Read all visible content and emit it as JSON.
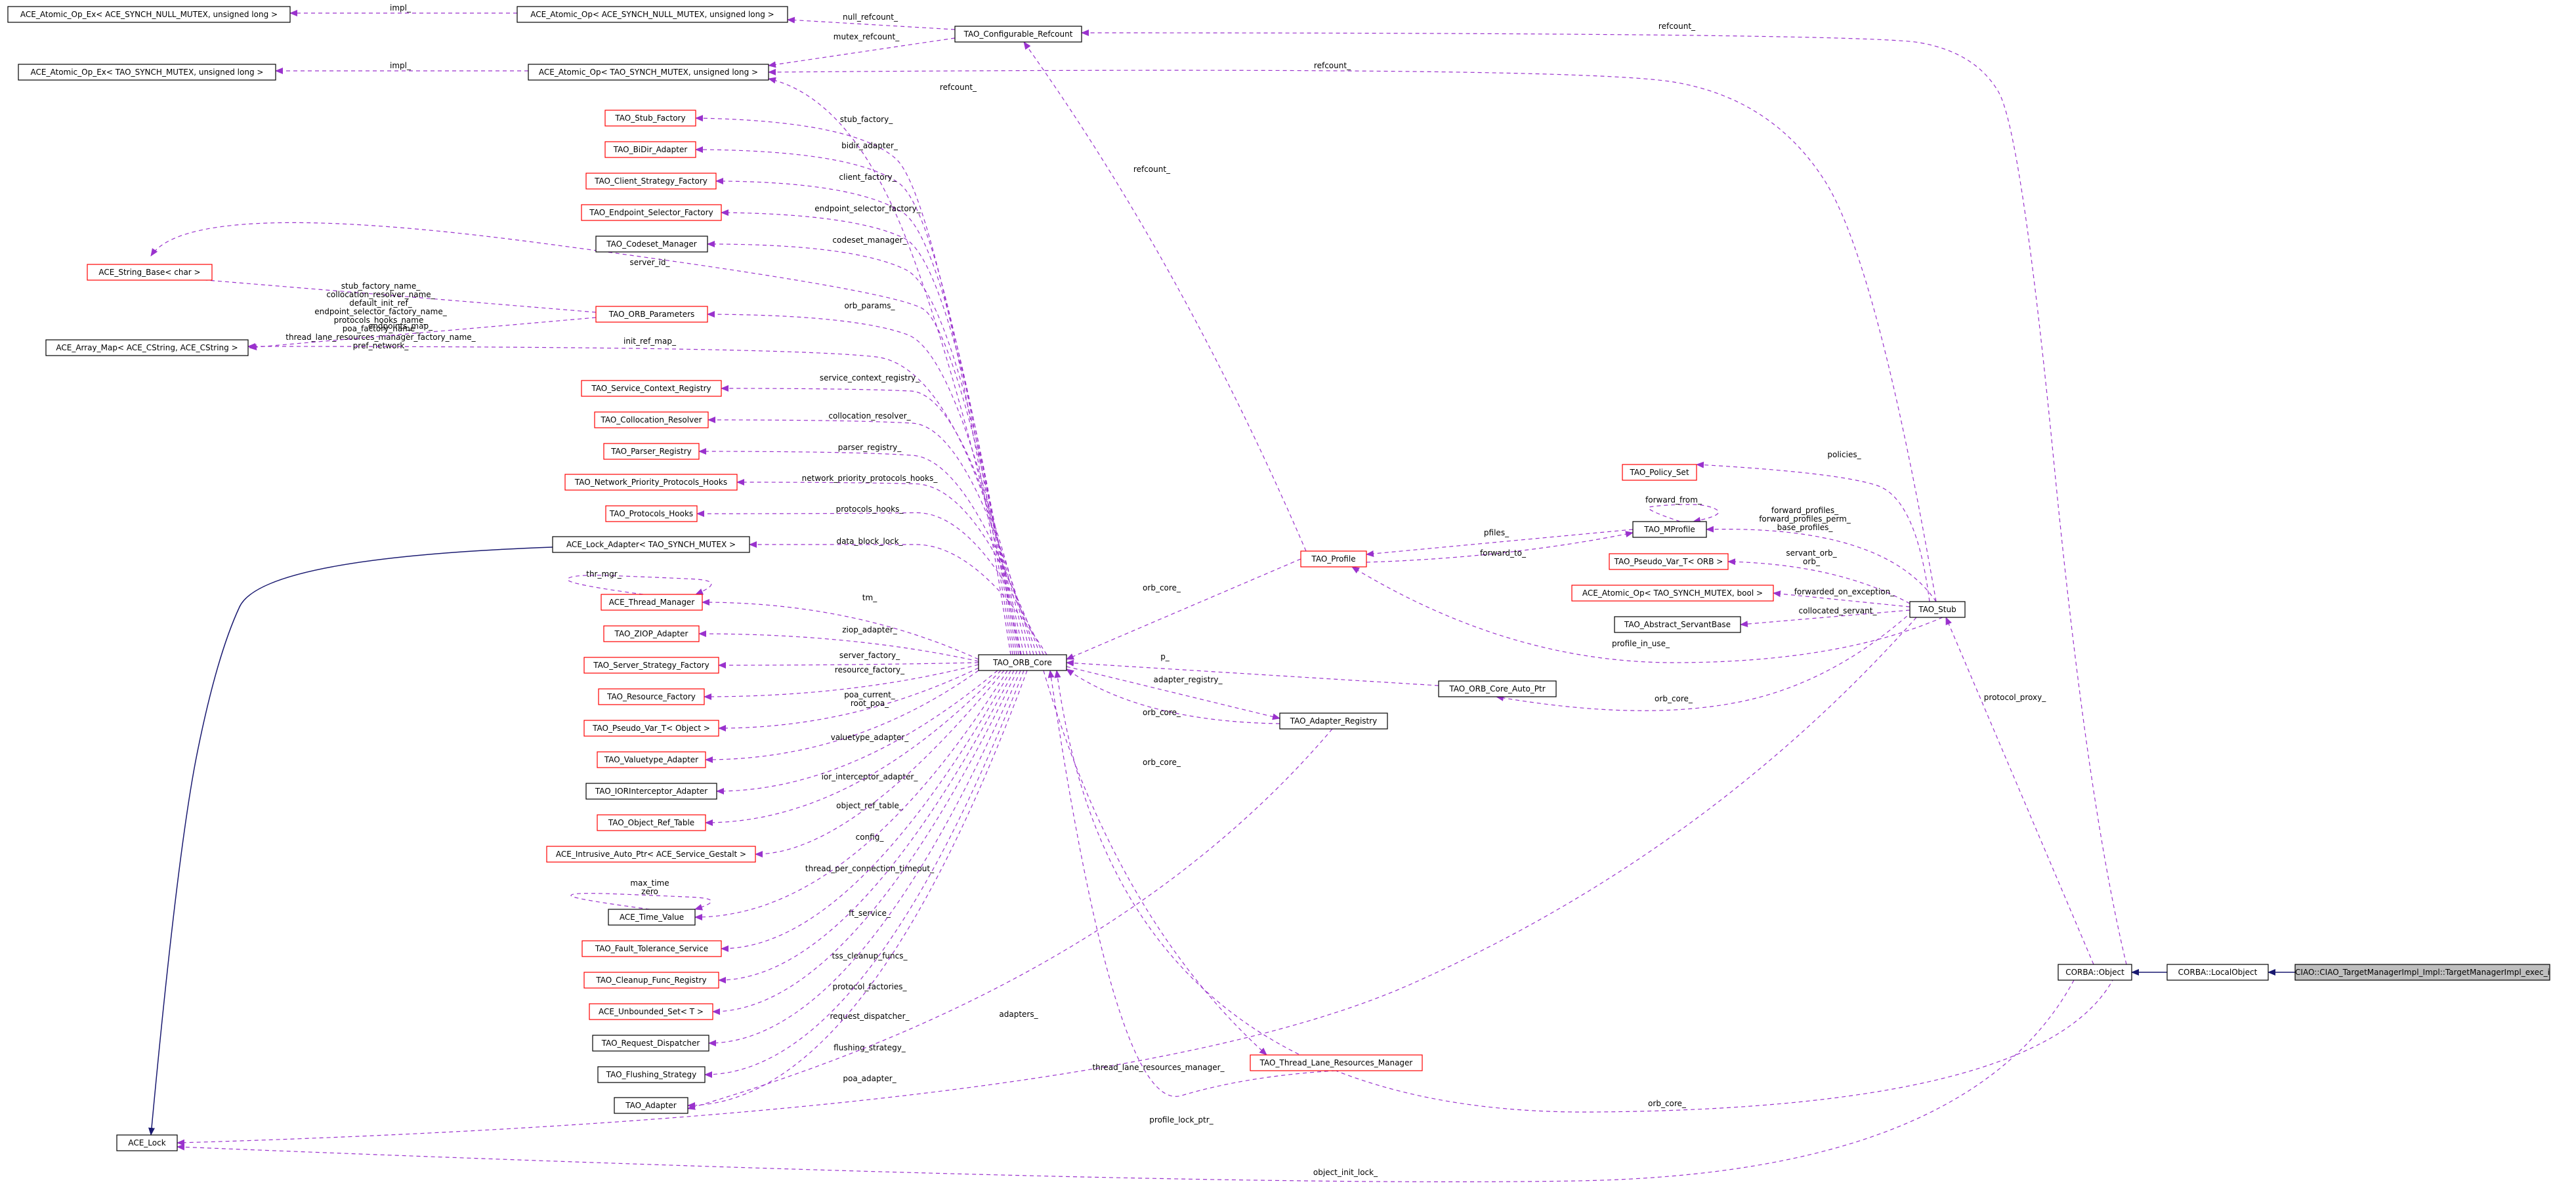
{
  "colors": {
    "edge_usage": "#9a32cd",
    "edge_inherit": "#191970",
    "node_border_doc": "#000000",
    "node_border_undoc": "#ff0000",
    "node_fill": "#ffffff",
    "node_fill_focus": "#bfbfbf",
    "text": "#000000"
  },
  "nodes": [
    {
      "id": "n1",
      "label": "ACE_Atomic_Op_Ex< ACE_SYNCH_NULL_MUTEX, unsigned long >",
      "doc": true
    },
    {
      "id": "n2",
      "label": "ACE_Atomic_Op< ACE_SYNCH_NULL_MUTEX, unsigned long >",
      "doc": true
    },
    {
      "id": "n3",
      "label": "TAO_Configurable_Refcount",
      "doc": true
    },
    {
      "id": "n4",
      "label": "ACE_Atomic_Op_Ex< TAO_SYNCH_MUTEX, unsigned long >",
      "doc": true
    },
    {
      "id": "n5",
      "label": "ACE_Atomic_Op< TAO_SYNCH_MUTEX, unsigned long >",
      "doc": true
    },
    {
      "id": "n6",
      "label": "TAO_Stub_Factory",
      "doc": false
    },
    {
      "id": "n7",
      "label": "TAO_BiDir_Adapter",
      "doc": false
    },
    {
      "id": "n8",
      "label": "TAO_Client_Strategy_Factory",
      "doc": false
    },
    {
      "id": "n9",
      "label": "TAO_Endpoint_Selector_Factory",
      "doc": false
    },
    {
      "id": "n10",
      "label": "TAO_Codeset_Manager",
      "doc": true
    },
    {
      "id": "n11",
      "label": "ACE_String_Base< char >",
      "doc": false
    },
    {
      "id": "n12",
      "label": "TAO_ORB_Parameters",
      "doc": false
    },
    {
      "id": "n13",
      "label": "ACE_Array_Map< ACE_CString, ACE_CString >",
      "doc": true
    },
    {
      "id": "n14",
      "label": "TAO_Service_Context_Registry",
      "doc": false
    },
    {
      "id": "n15",
      "label": "TAO_Collocation_Resolver",
      "doc": false
    },
    {
      "id": "n16",
      "label": "TAO_Parser_Registry",
      "doc": false
    },
    {
      "id": "n17",
      "label": "TAO_Network_Priority_Protocols_Hooks",
      "doc": false
    },
    {
      "id": "n18",
      "label": "TAO_Protocols_Hooks",
      "doc": false
    },
    {
      "id": "n19",
      "label": "ACE_Lock_Adapter< TAO_SYNCH_MUTEX >",
      "doc": true
    },
    {
      "id": "n20",
      "label": "ACE_Thread_Manager",
      "doc": false
    },
    {
      "id": "n21",
      "label": "TAO_ZIOP_Adapter",
      "doc": false
    },
    {
      "id": "n22",
      "label": "TAO_Server_Strategy_Factory",
      "doc": false
    },
    {
      "id": "n23",
      "label": "TAO_Resource_Factory",
      "doc": false
    },
    {
      "id": "n24",
      "label": "TAO_Pseudo_Var_T< Object >",
      "doc": false
    },
    {
      "id": "n25",
      "label": "TAO_Valuetype_Adapter",
      "doc": false
    },
    {
      "id": "n26",
      "label": "TAO_IORInterceptor_Adapter",
      "doc": true
    },
    {
      "id": "n27",
      "label": "TAO_Object_Ref_Table",
      "doc": false
    },
    {
      "id": "n28",
      "label": "ACE_Intrusive_Auto_Ptr< ACE_Service_Gestalt >",
      "doc": false
    },
    {
      "id": "n29",
      "label": "ACE_Time_Value",
      "doc": true
    },
    {
      "id": "n30",
      "label": "TAO_Fault_Tolerance_Service",
      "doc": false
    },
    {
      "id": "n31",
      "label": "TAO_Cleanup_Func_Registry",
      "doc": false
    },
    {
      "id": "n32",
      "label": "ACE_Unbounded_Set< T >",
      "doc": false
    },
    {
      "id": "n33",
      "label": "TAO_Request_Dispatcher",
      "doc": true
    },
    {
      "id": "n34",
      "label": "TAO_Flushing_Strategy",
      "doc": true
    },
    {
      "id": "n35",
      "label": "TAO_Adapter",
      "doc": true
    },
    {
      "id": "n36",
      "label": "ACE_Lock",
      "doc": true
    },
    {
      "id": "n37",
      "label": "TAO_ORB_Core",
      "doc": true
    },
    {
      "id": "n38",
      "label": "TAO_Adapter_Registry",
      "doc": true
    },
    {
      "id": "n39",
      "label": "TAO_Thread_Lane_Resources_Manager",
      "doc": false
    },
    {
      "id": "n40",
      "label": "TAO_Profile",
      "doc": false
    },
    {
      "id": "n41",
      "label": "TAO_ORB_Core_Auto_Ptr",
      "doc": true
    },
    {
      "id": "n42",
      "label": "TAO_Policy_Set",
      "doc": false
    },
    {
      "id": "n43",
      "label": "TAO_MProfile",
      "doc": true
    },
    {
      "id": "n44",
      "label": "TAO_Pseudo_Var_T< ORB >",
      "doc": false
    },
    {
      "id": "n45",
      "label": "ACE_Atomic_Op< TAO_SYNCH_MUTEX, bool >",
      "doc": false
    },
    {
      "id": "n46",
      "label": "TAO_Abstract_ServantBase",
      "doc": true
    },
    {
      "id": "n47",
      "label": "TAO_Stub",
      "doc": true
    },
    {
      "id": "n48",
      "label": "CORBA::Object",
      "doc": true
    },
    {
      "id": "n49",
      "label": "CORBA::LocalObject",
      "doc": true
    },
    {
      "id": "n50",
      "label": "CIAO::CIAO_TargetManagerImpl_Impl::TargetManagerImpl_exec_i",
      "doc": true,
      "focus": true
    }
  ],
  "edges": [
    {
      "kind": "use",
      "labels": [
        "impl_"
      ]
    },
    {
      "kind": "use",
      "labels": [
        "null_refcount_"
      ]
    },
    {
      "kind": "use",
      "labels": [
        "refcount_"
      ]
    },
    {
      "kind": "use",
      "labels": [
        "impl_"
      ]
    },
    {
      "kind": "use",
      "labels": [
        "mutex_refcount_"
      ]
    },
    {
      "kind": "use",
      "labels": [
        "refcount_"
      ]
    },
    {
      "kind": "use",
      "labels": [
        "refcount_"
      ]
    },
    {
      "kind": "use",
      "labels": [
        "refcount_"
      ]
    },
    {
      "kind": "use",
      "labels": [
        "stub_factory_"
      ]
    },
    {
      "kind": "use",
      "labels": [
        "bidir_adapter_"
      ]
    },
    {
      "kind": "use",
      "labels": [
        "client_factory_"
      ]
    },
    {
      "kind": "use",
      "labels": [
        "endpoint_selector_factory_"
      ]
    },
    {
      "kind": "use",
      "labels": [
        "codeset_manager_"
      ]
    },
    {
      "kind": "use",
      "labels": [
        "server_id_"
      ]
    },
    {
      "kind": "use",
      "labels": [
        "stub_factory_name_",
        "collocation_resolver_name_",
        "default_init_ref_",
        "endpoint_selector_factory_name_",
        "protocols_hooks_name_",
        "poa_factory_name_",
        "thread_lane_resources_manager_factory_name_",
        "pref_network_"
      ]
    },
    {
      "kind": "use",
      "labels": [
        "endpoints_map_"
      ]
    },
    {
      "kind": "use",
      "labels": [
        "orb_params_"
      ]
    },
    {
      "kind": "use",
      "labels": [
        "init_ref_map_"
      ]
    },
    {
      "kind": "use",
      "labels": [
        "service_context_registry_"
      ]
    },
    {
      "kind": "use",
      "labels": [
        "collocation_resolver_"
      ]
    },
    {
      "kind": "use",
      "labels": [
        "parser_registry_"
      ]
    },
    {
      "kind": "use",
      "labels": [
        "network_priority_protocols_hooks_"
      ]
    },
    {
      "kind": "use",
      "labels": [
        "protocols_hooks_"
      ]
    },
    {
      "kind": "use",
      "labels": [
        "data_block_lock_"
      ]
    },
    {
      "kind": "use",
      "labels": [
        "thr_mgr_"
      ]
    },
    {
      "kind": "use",
      "labels": [
        "tm_"
      ]
    },
    {
      "kind": "use",
      "labels": [
        "ziop_adapter_"
      ]
    },
    {
      "kind": "use",
      "labels": [
        "server_factory_"
      ]
    },
    {
      "kind": "use",
      "labels": [
        "resource_factory_"
      ]
    },
    {
      "kind": "use",
      "labels": [
        "poa_current_",
        "root_poa_"
      ]
    },
    {
      "kind": "use",
      "labels": [
        "valuetype_adapter_"
      ]
    },
    {
      "kind": "use",
      "labels": [
        "ior_interceptor_adapter_"
      ]
    },
    {
      "kind": "use",
      "labels": [
        "object_ref_table_"
      ]
    },
    {
      "kind": "use",
      "labels": [
        "config_"
      ]
    },
    {
      "kind": "use",
      "labels": [
        "max_time",
        "zero"
      ]
    },
    {
      "kind": "use",
      "labels": [
        "thread_per_connection_timeout_"
      ]
    },
    {
      "kind": "use",
      "labels": [
        "ft_service_"
      ]
    },
    {
      "kind": "use",
      "labels": [
        "tss_cleanup_funcs_"
      ]
    },
    {
      "kind": "use",
      "labels": [
        "protocol_factories_"
      ]
    },
    {
      "kind": "use",
      "labels": [
        "request_dispatcher_"
      ]
    },
    {
      "kind": "use",
      "labels": [
        "flushing_strategy_"
      ]
    },
    {
      "kind": "use",
      "labels": [
        "poa_adapter_"
      ]
    },
    {
      "kind": "use",
      "labels": [
        "adapters_"
      ]
    },
    {
      "kind": "use",
      "labels": [
        "profile_lock_ptr_"
      ]
    },
    {
      "kind": "use",
      "labels": [
        "object_init_lock_"
      ]
    },
    {
      "kind": "use",
      "labels": [
        "orb_core_"
      ]
    },
    {
      "kind": "use",
      "labels": [
        "p_"
      ]
    },
    {
      "kind": "use",
      "labels": [
        "adapter_registry_"
      ]
    },
    {
      "kind": "use",
      "labels": [
        "orb_core_"
      ]
    },
    {
      "kind": "use",
      "labels": [
        "orb_core_"
      ]
    },
    {
      "kind": "use",
      "labels": [
        "thread_lane_resources_manager_"
      ]
    },
    {
      "kind": "use",
      "labels": [
        "orb_core_"
      ]
    },
    {
      "kind": "use",
      "labels": [
        "orb_core_"
      ]
    },
    {
      "kind": "use",
      "labels": [
        "policies_"
      ]
    },
    {
      "kind": "use",
      "labels": [
        "forward_from_"
      ]
    },
    {
      "kind": "use",
      "labels": [
        "pfiles_"
      ]
    },
    {
      "kind": "use",
      "labels": [
        "forward_to_"
      ]
    },
    {
      "kind": "use",
      "labels": [
        "forward_profiles_",
        "forward_profiles_perm_",
        "base_profiles_"
      ]
    },
    {
      "kind": "use",
      "labels": [
        "servant_orb_",
        "orb_"
      ]
    },
    {
      "kind": "use",
      "labels": [
        "forwarded_on_exception_"
      ]
    },
    {
      "kind": "use",
      "labels": [
        "collocated_servant_"
      ]
    },
    {
      "kind": "use",
      "labels": [
        "profile_in_use_"
      ]
    },
    {
      "kind": "use",
      "labels": [
        "protocol_proxy_"
      ]
    },
    {
      "kind": "inherit",
      "labels": []
    },
    {
      "kind": "inherit",
      "labels": []
    },
    {
      "kind": "inherit",
      "labels": []
    }
  ]
}
